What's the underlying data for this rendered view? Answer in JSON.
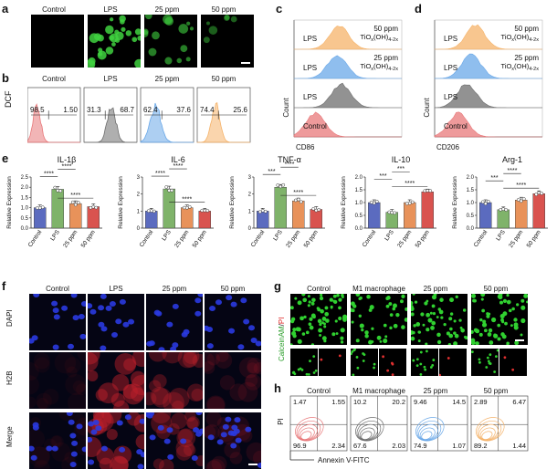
{
  "panels": {
    "a": "a",
    "b": "b",
    "c": "c",
    "d": "d",
    "e": "e",
    "f": "f",
    "g": "g",
    "h": "h"
  },
  "panel_a": {
    "labels": [
      "Control",
      "LPS",
      "25 ppm",
      "50 ppm"
    ]
  },
  "panel_b": {
    "ylabel": "DCF",
    "labels": [
      "Control",
      "LPS",
      "25 ppm",
      "50 ppm"
    ],
    "left_values": [
      "98.5",
      "31.3",
      "62.4",
      "74.4"
    ],
    "right_values": [
      "1.50",
      "68.7",
      "37.6",
      "25.6"
    ],
    "colors": [
      "#e8787a",
      "#6d6d6d",
      "#6aa8e8",
      "#f5b36a"
    ]
  },
  "flow_c": {
    "xlabel": "CD86",
    "ylabel": "Count",
    "rows": [
      "LPS",
      "LPS",
      "LPS",
      "Control"
    ],
    "annot1": {
      "main": "50 ppm",
      "formula": "TiO",
      "sub1": "x",
      "mid": "(OH)",
      "sub2": "4-2x"
    },
    "annot2": {
      "main": "25 ppm",
      "formula": "TiO",
      "sub1": "x",
      "mid": "(OH)",
      "sub2": "4-2x"
    }
  },
  "flow_d": {
    "xlabel": "CD206",
    "ylabel": "Count",
    "rows": [
      "LPS",
      "LPS",
      "LPS",
      "Control"
    ],
    "annot1": {
      "main": "50 ppm",
      "formula": "TiO",
      "sub1": "x",
      "mid": "(OH)",
      "sub2": "4-2x"
    },
    "annot2": {
      "main": "25 ppm",
      "formula": "TiO",
      "sub1": "x",
      "mid": "(OH)",
      "sub2": "4-2x"
    }
  },
  "chart_data": [
    {
      "type": "bar",
      "title": "IL-1β",
      "categories": [
        "Control",
        "LPS",
        "25 ppm",
        "50 ppm"
      ],
      "values": [
        1.0,
        1.9,
        1.2,
        1.05
      ],
      "ylim": [
        0,
        2.5
      ],
      "yticks": [
        "0.0",
        "0.5",
        "1.0",
        "1.5",
        "2.0",
        "2.5"
      ],
      "ylabel": "Relative Expression",
      "sig": [
        "****",
        "****",
        "****"
      ],
      "colors": [
        "#5b6bbf",
        "#7fb36a",
        "#e8925a",
        "#d9534f"
      ]
    },
    {
      "type": "bar",
      "title": "IL-6",
      "categories": [
        "Control",
        "LPS",
        "25 ppm",
        "50 ppm"
      ],
      "values": [
        1.0,
        2.3,
        1.2,
        1.0
      ],
      "ylim": [
        0,
        3
      ],
      "yticks": [
        "0",
        "1",
        "2",
        "3"
      ],
      "ylabel": "Relative Expression",
      "sig": [
        "****",
        "****",
        "****"
      ],
      "colors": [
        "#5b6bbf",
        "#7fb36a",
        "#e8925a",
        "#d9534f"
      ]
    },
    {
      "type": "bar",
      "title": "TNF-α",
      "categories": [
        "Control",
        "LPS",
        "25 ppm",
        "50 ppm"
      ],
      "values": [
        1.0,
        2.4,
        1.6,
        1.1
      ],
      "ylim": [
        0,
        3
      ],
      "yticks": [
        "0",
        "1",
        "2",
        "3"
      ],
      "ylabel": "Relative Expression",
      "sig": [
        "***",
        "****",
        "****"
      ],
      "colors": [
        "#5b6bbf",
        "#7fb36a",
        "#e8925a",
        "#d9534f"
      ]
    },
    {
      "type": "bar",
      "title": "IL-10",
      "categories": [
        "Control",
        "LPS",
        "25 ppm",
        "50 ppm"
      ],
      "values": [
        1.0,
        0.62,
        1.0,
        1.42
      ],
      "ylim": [
        0,
        2.0
      ],
      "yticks": [
        "0.0",
        "0.5",
        "1.0",
        "1.5",
        "2.0"
      ],
      "ylabel": "Relative Expression",
      "sig": [
        "***",
        "***",
        "****"
      ],
      "colors": [
        "#5b6bbf",
        "#7fb36a",
        "#e8925a",
        "#d9534f"
      ]
    },
    {
      "type": "bar",
      "title": "Arg-1",
      "categories": [
        "Control",
        "LPS",
        "25 ppm",
        "50 ppm"
      ],
      "values": [
        1.0,
        0.72,
        1.1,
        1.35
      ],
      "ylim": [
        0,
        2.0
      ],
      "yticks": [
        "0.0",
        "0.5",
        "1.0",
        "1.5",
        "2.0"
      ],
      "ylabel": "Relative Expression",
      "sig": [
        "***",
        "****",
        "****"
      ],
      "colors": [
        "#5b6bbf",
        "#7fb36a",
        "#e8925a",
        "#d9534f"
      ]
    }
  ],
  "panel_f": {
    "cols": [
      "Control",
      "LPS",
      "25 ppm",
      "50 ppm"
    ],
    "rows": [
      "DAPI",
      "H2B",
      "Merge"
    ]
  },
  "panel_g": {
    "cols": [
      "Control",
      "M1 macrophage",
      "25 ppm",
      "50 ppm"
    ],
    "ylabel_a": "Calcein",
    "ylabel_b": "AM",
    "ylabel_c": "/",
    "ylabel_d": "PI"
  },
  "panel_h": {
    "cols": [
      "Control",
      "M1 macrophage",
      "25 ppm",
      "50 ppm"
    ],
    "ylabel": "PI",
    "xlabel": "Annexin V-FITC",
    "quadrants": [
      {
        "ul": "1.47",
        "ur": "1.55",
        "ll": "96.9",
        "lr": "2.34"
      },
      {
        "ul": "10.2",
        "ur": "20.2",
        "ll": "67.6",
        "lr": "2.03"
      },
      {
        "ul": "9.46",
        "ur": "14.5",
        "ll": "74.9",
        "lr": "1.07"
      },
      {
        "ul": "2.89",
        "ur": "6.47",
        "ll": "89.2",
        "lr": "1.44"
      }
    ],
    "colors": [
      "#e8787a",
      "#6d6d6d",
      "#6aa8e8",
      "#f5b36a"
    ]
  }
}
